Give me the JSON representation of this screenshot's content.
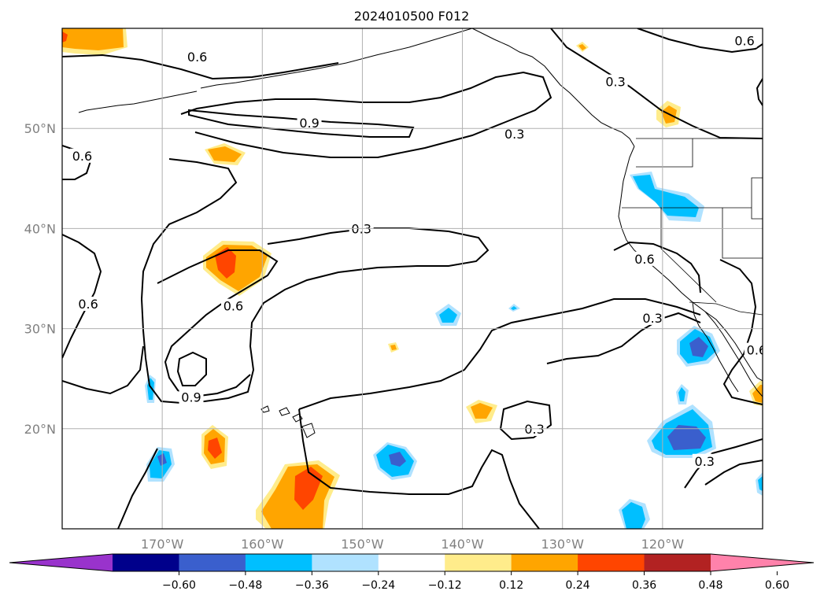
{
  "title": "2024010500 F012",
  "map": {
    "lat_range": [
      10,
      60
    ],
    "lon_range": [
      -180,
      -110
    ],
    "lat_ticks": [
      {
        "value": 20,
        "label": "20°N"
      },
      {
        "value": 30,
        "label": "30°N"
      },
      {
        "value": 40,
        "label": "40°N"
      },
      {
        "value": 50,
        "label": "50°N"
      }
    ],
    "lon_ticks": [
      {
        "value": -170,
        "label": "170°W"
      },
      {
        "value": -160,
        "label": "160°W"
      },
      {
        "value": -150,
        "label": "150°W"
      },
      {
        "value": -140,
        "label": "140°W"
      },
      {
        "value": -130,
        "label": "130°W"
      },
      {
        "value": -120,
        "label": "120°W"
      }
    ],
    "grid": true,
    "contour_labels": [
      {
        "text": "0.6",
        "lon": -166.5,
        "lat": 57.1
      },
      {
        "text": "0.9",
        "lon": -155.3,
        "lat": 50.5
      },
      {
        "text": "0.3",
        "lon": -134.8,
        "lat": 49.4
      },
      {
        "text": "0.3",
        "lon": -124.7,
        "lat": 54.6
      },
      {
        "text": "0.6",
        "lon": -111.8,
        "lat": 58.7
      },
      {
        "text": "0.6",
        "lon": -178.0,
        "lat": 47.2
      },
      {
        "text": "0.3",
        "lon": -150.1,
        "lat": 39.9
      },
      {
        "text": "0.6",
        "lon": -177.4,
        "lat": 32.4
      },
      {
        "text": "0.6",
        "lon": -162.9,
        "lat": 32.2
      },
      {
        "text": "0.9",
        "lon": -167.1,
        "lat": 23.1
      },
      {
        "text": "0.6",
        "lon": -121.8,
        "lat": 36.9
      },
      {
        "text": "0.3",
        "lon": -121.0,
        "lat": 31.0
      },
      {
        "text": "0.3",
        "lon": -132.8,
        "lat": 19.9
      },
      {
        "text": "0.3",
        "lon": -115.8,
        "lat": 16.7
      },
      {
        "text": "0.6",
        "lon": -110.6,
        "lat": 27.8
      }
    ]
  },
  "colorbar": {
    "colors": [
      "#9933cc",
      "#00008b",
      "#3a5fcd",
      "#00bfff",
      "#b0e2ff",
      "#ffffff",
      "#ffec8b",
      "#ffa500",
      "#ff4500",
      "#b22222",
      "#ff82ab"
    ],
    "tick_labels": [
      "−0.60",
      "−0.48",
      "−0.36",
      "−0.24",
      "−0.12",
      "0.12",
      "0.24",
      "0.36",
      "0.48",
      "0.60"
    ],
    "extend": "both"
  }
}
